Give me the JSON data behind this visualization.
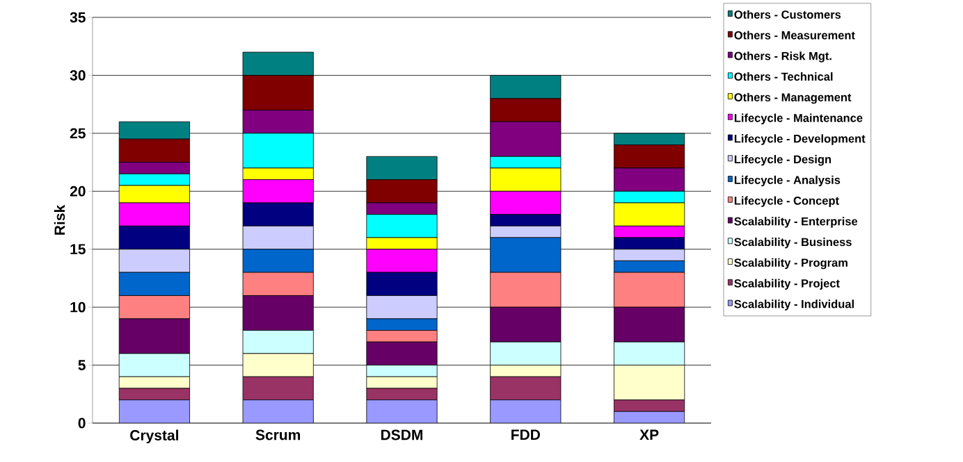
{
  "chart_data": {
    "type": "bar",
    "stacked": true,
    "ylabel": "Risk",
    "categories": [
      "Crystal",
      "Scrum",
      "DSDM",
      "FDD",
      "XP"
    ],
    "ylim": [
      0,
      35
    ],
    "yticks": [
      0,
      5,
      10,
      15,
      20,
      25,
      30,
      35
    ],
    "grid": "y",
    "legend": "right",
    "series": [
      {
        "name": "Scalability - Individual",
        "color": "#9999ff",
        "values": [
          2,
          2,
          2,
          2,
          1
        ]
      },
      {
        "name": "Scalability - Project",
        "color": "#993366",
        "values": [
          1,
          2,
          1,
          2,
          1
        ]
      },
      {
        "name": "Scalability - Program",
        "color": "#ffffcc",
        "values": [
          1,
          2,
          1,
          1,
          3
        ]
      },
      {
        "name": "Scalability - Business",
        "color": "#ccffff",
        "values": [
          2,
          2,
          1,
          2,
          2
        ]
      },
      {
        "name": "Scalability - Enterprise",
        "color": "#660066",
        "values": [
          3,
          3,
          2,
          3,
          3
        ]
      },
      {
        "name": "Lifecycle - Concept",
        "color": "#ff8080",
        "values": [
          2,
          2,
          1,
          3,
          3
        ]
      },
      {
        "name": "Lifecycle - Analysis",
        "color": "#0066cc",
        "values": [
          2,
          2,
          1,
          3,
          1
        ]
      },
      {
        "name": "Lifecycle - Design",
        "color": "#ccccff",
        "values": [
          2,
          2,
          2,
          1,
          1
        ]
      },
      {
        "name": "Lifecycle - Development",
        "color": "#000080",
        "values": [
          2,
          2,
          2,
          1,
          1
        ]
      },
      {
        "name": "Lifecycle - Maintenance",
        "color": "#ff00ff",
        "values": [
          2,
          2,
          2,
          2,
          1
        ]
      },
      {
        "name": "Others - Management",
        "color": "#ffff00",
        "values": [
          1.5,
          1,
          1,
          2,
          2
        ]
      },
      {
        "name": "Others - Technical",
        "color": "#00ffff",
        "values": [
          1,
          3,
          2,
          1,
          1
        ]
      },
      {
        "name": "Others - Risk Mgt.",
        "color": "#800080",
        "values": [
          1,
          2,
          1,
          3,
          2
        ]
      },
      {
        "name": "Others - Measurement",
        "color": "#800000",
        "values": [
          2,
          3,
          2,
          2,
          2
        ]
      },
      {
        "name": "Others - Customers",
        "color": "#008080",
        "values": [
          1.5,
          2,
          2,
          2,
          1
        ]
      }
    ]
  }
}
